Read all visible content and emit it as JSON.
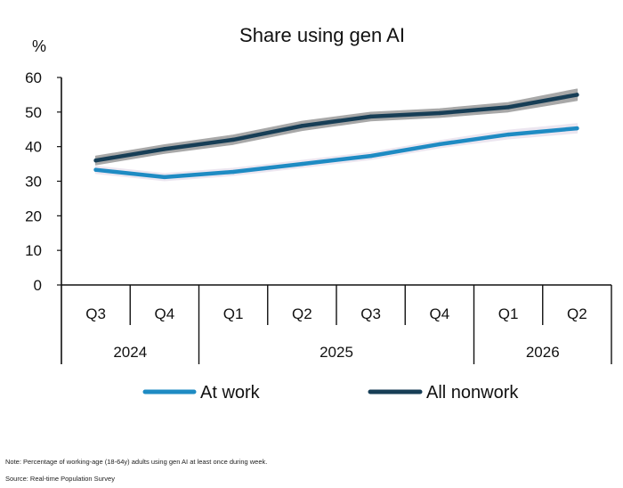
{
  "chart_data": {
    "type": "line",
    "title": "Share using gen AI",
    "ylabel": "%",
    "ylim": [
      0,
      60
    ],
    "yticks": [
      0,
      10,
      20,
      30,
      40,
      50,
      60
    ],
    "quarters": [
      "Q3",
      "Q4",
      "Q1",
      "Q2",
      "Q3",
      "Q4",
      "Q1",
      "Q2"
    ],
    "years": [
      {
        "label": "2024",
        "span": 2
      },
      {
        "label": "2025",
        "span": 4
      },
      {
        "label": "2026",
        "span": 2
      }
    ],
    "x": [
      0,
      1,
      2,
      3,
      4,
      5,
      6,
      7
    ],
    "series": [
      {
        "name": "At work",
        "color": "#1e8bc3",
        "band_color": "#ece6f0",
        "x": [
          0,
          1,
          2,
          3,
          4,
          5,
          6,
          7
        ],
        "values": [
          33.3,
          31.2,
          32.7,
          35.0,
          37.3,
          40.7,
          43.5,
          45.3
        ],
        "ci_low": [
          32.3,
          30.2,
          31.7,
          34.0,
          36.3,
          39.7,
          42.3,
          44.0
        ],
        "ci_high": [
          34.3,
          32.2,
          33.7,
          36.0,
          38.3,
          41.7,
          44.7,
          46.6
        ]
      },
      {
        "name": "All nonwork",
        "color": "#173e56",
        "band_color": "#a8a8a8",
        "x": [
          0,
          1,
          2,
          3,
          4,
          5,
          6,
          7
        ],
        "values": [
          36.0,
          39.3,
          42.0,
          46.0,
          48.7,
          49.7,
          51.4,
          55.0
        ],
        "ci_low": [
          34.8,
          38.1,
          40.7,
          44.7,
          47.5,
          48.5,
          50.1,
          53.4
        ],
        "ci_high": [
          37.2,
          40.5,
          43.3,
          47.3,
          49.9,
          50.9,
          52.7,
          56.6
        ]
      }
    ],
    "legend": "bottom",
    "grid": false
  },
  "note": "Note: Percentage of working-age (18-64y) adults using gen AI at least once during week.",
  "source": "Source: Real-time Population Survey"
}
